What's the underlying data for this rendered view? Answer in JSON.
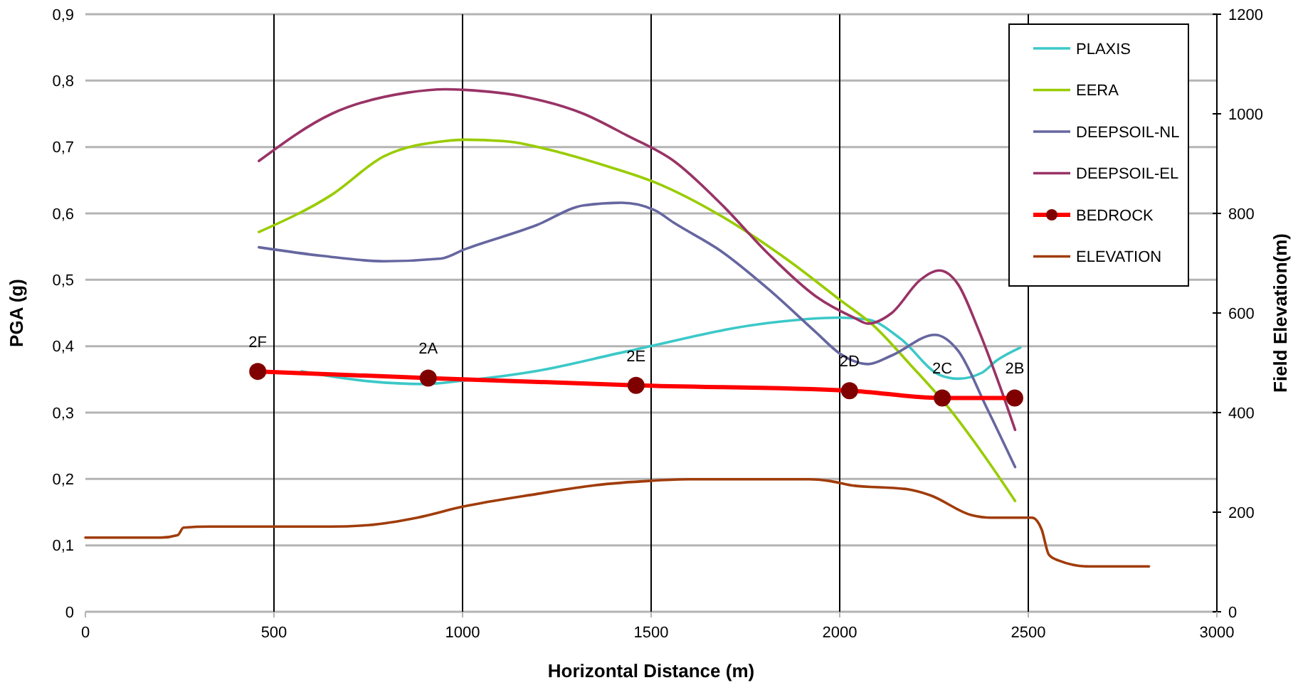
{
  "chart_data": {
    "type": "line",
    "xlabel": "Horizontal Distance (m)",
    "ylabel": "PGA (g)",
    "y2label": "Field Elevation(m)",
    "xlim": [
      0,
      3000
    ],
    "xticks": [
      0,
      500,
      1000,
      1500,
      2000,
      2500,
      3000
    ],
    "ylim": [
      0,
      0.9
    ],
    "yticks": [
      0,
      {
        "value": 0.1,
        "label": "0,1"
      },
      {
        "value": 0.2,
        "label": "0,2"
      },
      {
        "value": 0.3,
        "label": "0,3"
      },
      {
        "value": 0.4,
        "label": "0,4"
      },
      {
        "value": 0.5,
        "label": "0,5"
      },
      {
        "value": 0.6,
        "label": "0,6"
      },
      {
        "value": 0.7,
        "label": "0,7"
      },
      {
        "value": 0.8,
        "label": "0,8"
      },
      {
        "value": 0.9,
        "label": "0,9"
      }
    ],
    "y2lim": [
      0,
      1200
    ],
    "y2ticks": [
      0,
      200,
      400,
      600,
      800,
      1000,
      1200
    ],
    "grid": true,
    "legend": "top right",
    "line_style": "solid",
    "series": [
      {
        "name": "PLAXIS",
        "color": "#3cc8c8",
        "marker": "none",
        "x": [
          573,
          755,
          894,
          1000,
          1200,
          1434,
          1811,
          2000,
          2075,
          2162,
          2264,
          2314,
          2377,
          2415,
          2479
        ],
        "values": [
          0.362,
          0.347,
          0.343,
          0.348,
          0.363,
          0.392,
          0.435,
          0.443,
          0.44,
          0.411,
          0.357,
          0.351,
          0.36,
          0.378,
          0.398
        ]
      },
      {
        "name": "EERA",
        "color": "#99cc00",
        "marker": "none",
        "x": [
          460,
          653,
          792,
          955,
          1006,
          1106,
          1257,
          1384,
          1509,
          1686,
          1874,
          2000,
          2088,
          2189,
          2289,
          2377,
          2465
        ],
        "values": [
          0.572,
          0.628,
          0.686,
          0.709,
          0.711,
          0.709,
          0.692,
          0.671,
          0.647,
          0.596,
          0.525,
          0.47,
          0.432,
          0.371,
          0.307,
          0.24,
          0.167
        ]
      },
      {
        "name": "DEEPSOIL-NL",
        "color": "#6666a0",
        "marker": "none",
        "x": [
          460,
          629,
          792,
          943,
          1006,
          1195,
          1321,
          1422,
          1509,
          1560,
          1686,
          1811,
          1937,
          2000,
          2075,
          2138,
          2252,
          2314,
          2390,
          2465
        ],
        "values": [
          0.549,
          0.536,
          0.528,
          0.532,
          0.546,
          0.582,
          0.612,
          0.616,
          0.605,
          0.586,
          0.543,
          0.486,
          0.421,
          0.389,
          0.373,
          0.386,
          0.417,
          0.393,
          0.307,
          0.218
        ]
      },
      {
        "name": "DEEPSOIL-EL",
        "color": "#993366",
        "marker": "none",
        "x": [
          460,
          653,
          855,
          955,
          1006,
          1170,
          1321,
          1434,
          1560,
          1686,
          1811,
          1937,
          2038,
          2075,
          2138,
          2214,
          2264,
          2314,
          2365,
          2427,
          2465
        ],
        "values": [
          0.679,
          0.75,
          0.782,
          0.787,
          0.786,
          0.775,
          0.75,
          0.718,
          0.679,
          0.614,
          0.539,
          0.475,
          0.443,
          0.434,
          0.45,
          0.5,
          0.514,
          0.493,
          0.429,
          0.336,
          0.274
        ]
      },
      {
        "name": "BEDROCK",
        "color": "#ff0000",
        "marker": "circle",
        "x": [
          457,
          909,
          1460,
          2026,
          2272,
          2464
        ],
        "values": [
          0.362,
          0.352,
          0.341,
          0.333,
          0.322,
          0.322
        ]
      },
      {
        "name": "ELEVATION",
        "color": "#a03c0a",
        "marker": "none",
        "axis": "y2",
        "x": [
          0,
          200,
          245,
          260,
          330,
          650,
          750,
          880,
          1000,
          1200,
          1350,
          1500,
          1600,
          1920,
          1970,
          2030,
          2180,
          2240,
          2350,
          2400,
          2460,
          2510,
          2535,
          2555,
          2580,
          2660,
          2820
        ],
        "values": [
          149,
          149,
          154,
          169,
          171,
          171,
          174,
          189,
          211,
          237,
          254,
          263,
          266,
          266,
          263,
          254,
          246,
          234,
          194,
          189,
          189,
          189,
          166,
          114,
          103,
          91,
          91
        ]
      }
    ],
    "annotations": [
      {
        "text": "2F",
        "x": 457,
        "y": 0.362
      },
      {
        "text": "2A",
        "x": 909,
        "y": 0.352
      },
      {
        "text": "2E",
        "x": 1460,
        "y": 0.341
      },
      {
        "text": "2D",
        "x": 2026,
        "y": 0.333
      },
      {
        "text": "2C",
        "x": 2272,
        "y": 0.322
      },
      {
        "text": "2B",
        "x": 2464,
        "y": 0.322
      }
    ]
  }
}
